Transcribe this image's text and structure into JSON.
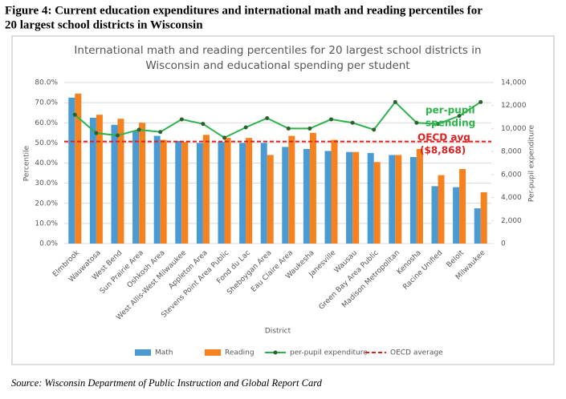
{
  "caption": [
    "Figure 4: Current education expenditures and international math and reading percentiles for",
    "20 largest school districts in Wisconsin"
  ],
  "source": "Source: Wisconsin Department of Public Instruction and Global Report Card",
  "chart_data": {
    "type": "bar",
    "title": [
      "International math and reading percentiles for 20 largest school districts in",
      "Wisconsin and educational spending per student"
    ],
    "x_label": "District",
    "y_label": "Percentile",
    "y2_label": "Per-pupil expenditure",
    "categories": [
      "Elmbrook",
      "Wauwatosa",
      "West Bend",
      "Sun Prairie Area",
      "Oshkosh Area",
      "West Allis-West Milwaukee",
      "Appleton Area",
      "Stevens Point Area Public",
      "Fond du Lac",
      "Sheboygan Area",
      "Eau Claire Area",
      "Waukesha",
      "Janesville",
      "Wausau",
      "Green Bay Area Public",
      "Madison Metropolitan",
      "Kenosha",
      "Racine Unified",
      "Beloit",
      "Milwaukee"
    ],
    "series": [
      {
        "name": "Math",
        "type": "bar",
        "color": "#4a9ad4",
        "values": [
          72.5,
          62.5,
          59,
          56,
          53.5,
          51,
          50,
          50.5,
          50,
          50,
          48,
          47,
          46,
          45.5,
          45,
          44,
          43,
          28.5,
          28,
          17.5
        ]
      },
      {
        "name": "Reading",
        "type": "bar",
        "color": "#f5821f",
        "values": [
          74.5,
          64,
          62,
          60,
          51.5,
          50.5,
          54,
          52.5,
          52.5,
          44,
          53.5,
          55,
          51.5,
          45.5,
          40.5,
          44,
          47,
          34,
          37,
          25.5
        ]
      },
      {
        "name": "per-pupil expenditure",
        "type": "line",
        "axis": "y2",
        "color": "#2db34a",
        "marker_color": "#2f5f2f",
        "values": [
          11200,
          9600,
          9400,
          9900,
          9700,
          10800,
          10400,
          9200,
          10100,
          10900,
          10000,
          10000,
          10800,
          10500,
          9900,
          12300,
          10500,
          10400,
          11100,
          12300
        ]
      }
    ],
    "reference_line": {
      "name": "OECD average",
      "axis": "y2",
      "value": 8868,
      "color": "#e02020",
      "annotation": [
        "OECD avg",
        "($8,868)"
      ]
    },
    "line_annotation": [
      "per-pupil",
      "spending"
    ],
    "ylim": [
      0,
      80
    ],
    "yticks": [
      {
        "value": 0,
        "label": "0.0%"
      },
      {
        "value": 10,
        "label": "10.0%"
      },
      {
        "value": 20,
        "label": "20.0%"
      },
      {
        "value": 30,
        "label": "30.0%"
      },
      {
        "value": 40,
        "label": "40.0%"
      },
      {
        "value": 50,
        "label": "50.0%"
      },
      {
        "value": 60,
        "label": "60.0%"
      },
      {
        "value": 70,
        "label": "70.0%"
      },
      {
        "value": 80,
        "label": "80.0%"
      }
    ],
    "y2lim": [
      0,
      14000
    ],
    "y2ticks": [
      0,
      {
        "value": 2000,
        "label": "2,000"
      },
      {
        "value": 4000,
        "label": "4,000"
      },
      {
        "value": 6000,
        "label": "6,000"
      },
      {
        "value": 8000,
        "label": "8,000"
      },
      {
        "value": 10000,
        "label": "10,000"
      },
      {
        "value": 12000,
        "label": "12,000"
      },
      {
        "value": 14000,
        "label": "14,000"
      }
    ],
    "grid": true,
    "legend": "bottom"
  }
}
